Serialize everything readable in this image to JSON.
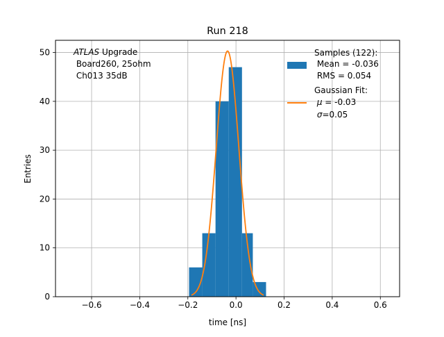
{
  "chart_data": {
    "type": "bar",
    "title": "Run 218",
    "xlabel": "time [ns]",
    "ylabel": "Entries",
    "xlim": [
      -0.75,
      0.68
    ],
    "ylim": [
      0,
      52.5
    ],
    "x_ticks": [
      -0.6,
      -0.4,
      -0.2,
      0.0,
      0.2,
      0.4,
      0.6
    ],
    "x_tick_labels": [
      "−0.6",
      "−0.4",
      "−0.2",
      "0.0",
      "0.2",
      "0.4",
      "0.6"
    ],
    "y_ticks": [
      0,
      10,
      20,
      30,
      40,
      50
    ],
    "y_tick_labels": [
      "0",
      "10",
      "20",
      "30",
      "40",
      "50"
    ],
    "grid": true,
    "histogram": {
      "bin_edges": [
        -0.195,
        -0.14,
        -0.085,
        -0.03,
        0.025,
        0.07,
        0.125
      ],
      "counts": [
        6,
        13,
        40,
        47,
        13,
        3
      ],
      "color": "#1f77b4"
    },
    "fit_curve": {
      "amplitude": 50.3,
      "mu": -0.035,
      "sigma": 0.047,
      "x_range": [
        -0.185,
        0.115
      ],
      "color": "#ff7f0e"
    },
    "annotation": {
      "line1_italic": "ATLAS",
      "line1_rest": " Upgrade",
      "line2": " Board260, 25ohm",
      "line3": " Ch013 35dB"
    },
    "legend": {
      "placement": "top-right",
      "entries": [
        {
          "line1": "Samples (122):",
          "line2": " Mean = -0.036",
          "line3": " RMS = 0.054",
          "color": "#1f77b4"
        },
        {
          "line1": "Gaussian Fit:",
          "line2_symbol": "μ",
          "line2_rest": " = -0.03",
          "line3_symbol": "σ",
          "line3_rest": "=0.05",
          "color": "#ff7f0e"
        }
      ]
    }
  }
}
